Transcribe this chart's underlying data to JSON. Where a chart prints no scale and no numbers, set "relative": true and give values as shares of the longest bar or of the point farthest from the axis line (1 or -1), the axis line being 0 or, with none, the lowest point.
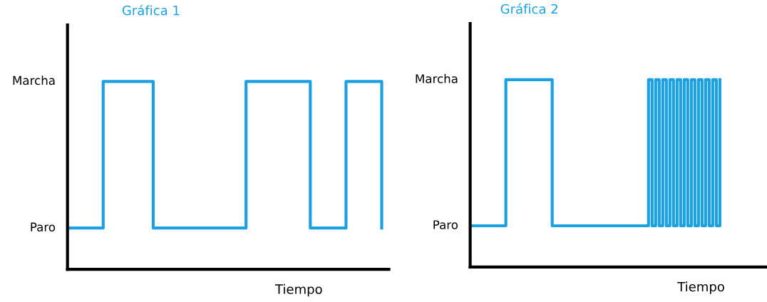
{
  "chart_data": [
    {
      "type": "step",
      "title": "Gráfica 1",
      "xlabel": "Tiempo",
      "relative": true,
      "categories": [
        null,
        null,
        null,
        null,
        null,
        null,
        null,
        null,
        null,
        null,
        null,
        null,
        null,
        null,
        null,
        null,
        null,
        null,
        null,
        null,
        null,
        null,
        null,
        null,
        null,
        null,
        null,
        null,
        null,
        null,
        null,
        null,
        null,
        null,
        null,
        null,
        null,
        null,
        null,
        null,
        null,
        null,
        null,
        null,
        null
      ],
      "series": [
        {
          "color": "#1ba1e2",
          "values": [
            0.22,
            0.22,
            0.22,
            0.22,
            0.22,
            1,
            1,
            1,
            1,
            1,
            1,
            1,
            0.22,
            0.22,
            0.22,
            0.22,
            0.22,
            0.22,
            0.22,
            0.22,
            0.22,
            0.22,
            0.22,
            0.22,
            0.22,
            1,
            1,
            1,
            1,
            1,
            1,
            1,
            1,
            1,
            0.22,
            0.22,
            0.22,
            0.22,
            0.22,
            1,
            1,
            1,
            1,
            1,
            0.22
          ]
        }
      ],
      "annotations": [
        "Paro",
        "Marcha"
      ]
    },
    {
      "type": "step",
      "title": "Gráfica 2",
      "xlabel": "Tiempo",
      "relative": true,
      "categories": [
        null,
        null,
        null,
        null,
        null,
        null,
        null,
        null,
        null,
        null,
        null,
        null,
        null,
        null,
        null,
        null,
        null,
        null,
        null,
        null,
        null,
        null,
        null,
        null,
        null,
        null,
        null,
        null,
        null,
        null,
        null,
        null,
        null,
        null,
        null,
        null,
        null,
        null,
        null,
        null,
        null,
        null,
        null,
        null,
        null,
        null,
        null,
        null,
        null,
        null,
        null,
        null,
        null,
        null,
        null,
        null,
        null,
        null,
        null,
        null,
        null,
        null,
        null,
        null,
        null,
        null,
        null,
        null,
        null,
        null,
        null
      ],
      "series": [
        {
          "color": "#1ba1e2",
          "values": [
            0.22,
            0.22,
            0.22,
            0.22,
            0.22,
            0.22,
            0.22,
            0.22,
            0.22,
            0.22,
            1,
            1,
            1,
            1,
            1,
            1,
            1,
            1,
            1,
            1,
            1,
            1,
            1,
            0.22,
            0.22,
            0.22,
            0.22,
            0.22,
            0.22,
            0.22,
            0.22,
            0.22,
            0.22,
            0.22,
            0.22,
            0.22,
            0.22,
            0.22,
            0.22,
            0.22,
            0.22,
            0.22,
            0.22,
            0.22,
            0.22,
            0.22,
            0.22,
            0.22,
            0.22,
            0.22,
            1,
            0.22,
            1,
            0.22,
            1,
            0.22,
            1,
            0.22,
            1,
            0.22,
            1,
            0.22,
            1,
            0.22,
            1,
            0.22,
            1,
            0.22,
            1,
            0.22,
            1
          ]
        }
      ],
      "annotations": [
        "Paro",
        "Marcha"
      ]
    }
  ]
}
